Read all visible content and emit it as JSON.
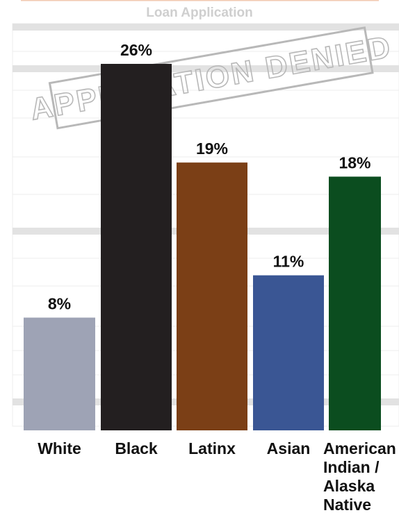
{
  "chart_data": {
    "type": "bar",
    "background_title": "Loan Application",
    "stamp": "APPLICATION DENIED",
    "categories": [
      "White",
      "Black",
      "Latinx",
      "Asian",
      "American Indian / Alaska Native"
    ],
    "values": [
      8,
      26,
      19,
      11,
      18
    ],
    "value_labels": [
      "8%",
      "26%",
      "19%",
      "11%",
      "18%"
    ],
    "colors": [
      "#9ea3b5",
      "#231f20",
      "#7b3f16",
      "#3a5694",
      "#0b4d1f"
    ],
    "ylim": [
      0,
      26
    ]
  }
}
